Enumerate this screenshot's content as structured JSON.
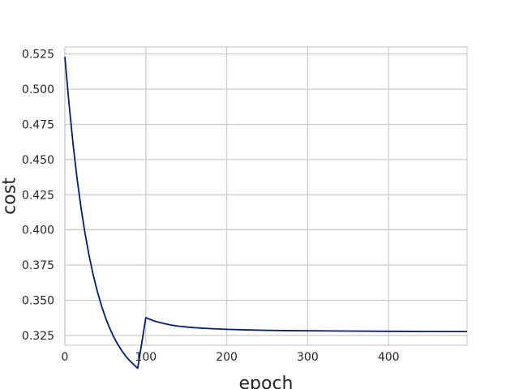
{
  "chart_data": {
    "type": "line",
    "xlabel": "epoch",
    "ylabel": "cost",
    "xlim": [
      0,
      497
    ],
    "ylim": [
      0.318,
      0.53
    ],
    "xticks": [
      0,
      100,
      200,
      300,
      400
    ],
    "yticks": [
      0.325,
      0.35,
      0.375,
      0.4,
      0.425,
      0.45,
      0.475,
      0.5,
      0.525
    ],
    "ytick_labels": [
      "0.325",
      "0.350",
      "0.375",
      "0.400",
      "0.425",
      "0.450",
      "0.475",
      "0.500",
      "0.525"
    ],
    "xtick_labels": [
      "0",
      "100",
      "200",
      "300",
      "400"
    ],
    "grid": true,
    "series": [
      {
        "color": "#001c7f",
        "x": [
          0,
          5,
          10,
          15,
          20,
          25,
          30,
          35,
          40,
          45,
          50,
          55,
          60,
          65,
          70,
          75,
          80,
          90,
          100,
          110,
          120,
          130,
          140,
          150,
          160,
          180,
          200,
          225,
          250,
          275,
          300,
          350,
          400,
          450,
          497
        ],
        "y": [
          0.523,
          0.4905,
          0.4616,
          0.4368,
          0.4155,
          0.3972,
          0.3815,
          0.368,
          0.3565,
          0.3465,
          0.3379,
          0.3306,
          0.3243,
          0.319,
          0.3144,
          0.3104,
          0.3071,
          0.3016,
          0.3376,
          0.3353,
          0.3338,
          0.3325,
          0.3316,
          0.331,
          0.3305,
          0.3298,
          0.3293,
          0.3289,
          0.3286,
          0.3284,
          0.3283,
          0.3281,
          0.3279,
          0.3278,
          0.3277
        ]
      }
    ]
  }
}
